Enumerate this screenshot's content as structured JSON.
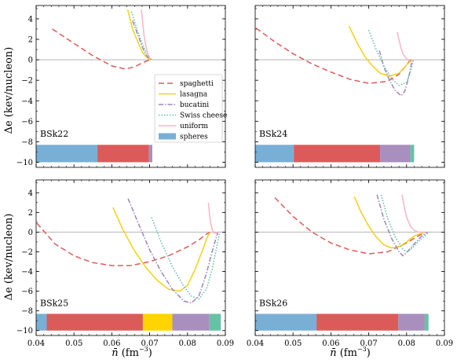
{
  "figure": {
    "ylabel": "Δe (kev/nucleon)",
    "xlabel_main": "n̄",
    "xlabel_unit": " (fm",
    "xlabel_exp": "−3",
    "xlabel_close": ")"
  },
  "legend": [
    {
      "key": "spaghetti",
      "label": "spaghetti",
      "color": "#dd5a5a",
      "dash": "7,4",
      "kind": "line"
    },
    {
      "key": "lasagna",
      "label": "lasagna",
      "color": "#f3d214",
      "dash": "",
      "kind": "line"
    },
    {
      "key": "bucatini",
      "label": "bucatini",
      "color": "#9e86b6",
      "dash": "6,2,1.5,2",
      "kind": "line"
    },
    {
      "key": "swiss",
      "label": "Swiss cheese",
      "color": "#5cbfa8",
      "dash": "1.5,2",
      "kind": "line"
    },
    {
      "key": "uniform",
      "label": "uniform",
      "color": "#f7b6c4",
      "dash": "",
      "kind": "line"
    },
    {
      "key": "spheres",
      "label": "spheres",
      "color": "#7aafd5",
      "dash": "",
      "kind": "patch"
    }
  ],
  "phase_colors": {
    "spheres": "#7aafd5",
    "spaghetti": "#dd5a5a",
    "lasagna": "#ffd400",
    "bucatini": "#a88fbe",
    "swiss": "#66c2a5"
  },
  "chart_data": [
    {
      "type": "line",
      "model": "BSk22",
      "xlim": [
        0.04,
        0.09
      ],
      "ylim": [
        -10.5,
        5.3
      ],
      "xticks": [
        "0.04",
        "0.05",
        "0.06",
        "0.07",
        "0.08",
        "0.09"
      ],
      "yticks": [
        "−10",
        "−8",
        "−6",
        "−4",
        "−2",
        "0",
        "2",
        "4"
      ],
      "show_xticklabels": false,
      "show_yticklabels": true,
      "series": [
        {
          "key": "spaghetti",
          "x": [
            0.0443,
            0.05,
            0.055,
            0.06,
            0.0635,
            0.066,
            0.068,
            0.07,
            0.0705
          ],
          "y": [
            3.0,
            1.6,
            0.4,
            -0.6,
            -0.9,
            -0.7,
            -0.3,
            0.0,
            0.05
          ]
        },
        {
          "key": "lasagna",
          "x": [
            0.0642,
            0.0655,
            0.0668,
            0.068,
            0.069,
            0.0698,
            0.0705
          ],
          "y": [
            4.9,
            3.0,
            1.8,
            0.8,
            0.3,
            0.05,
            0.0
          ]
        },
        {
          "key": "bucatini",
          "x": [
            0.0655,
            0.067,
            0.068,
            0.069,
            0.0698,
            0.0705
          ],
          "y": [
            3.8,
            2.3,
            1.3,
            0.5,
            0.15,
            0.0
          ]
        },
        {
          "key": "swiss",
          "x": [
            0.0652,
            0.0668,
            0.068,
            0.069,
            0.0698,
            0.0706
          ],
          "y": [
            4.7,
            2.8,
            1.6,
            0.8,
            0.25,
            0.0
          ]
        },
        {
          "key": "uniform",
          "x": [
            0.0678,
            0.0685,
            0.069,
            0.0695,
            0.07,
            0.0707
          ],
          "y": [
            4.9,
            2.4,
            1.3,
            0.6,
            0.2,
            0.0
          ]
        }
      ],
      "bands": [
        {
          "phase": "spheres",
          "from": 0.04,
          "to": 0.0562
        },
        {
          "phase": "spaghetti",
          "from": 0.0562,
          "to": 0.0698
        },
        {
          "phase": "bucatini",
          "from": 0.0698,
          "to": 0.0707
        }
      ]
    },
    {
      "type": "line",
      "model": "BSk24",
      "xlim": [
        0.04,
        0.09
      ],
      "ylim": [
        -10.5,
        5.3
      ],
      "xticks": [
        "0.04",
        "0.05",
        "0.06",
        "0.07",
        "0.08",
        "0.09"
      ],
      "yticks": [
        "−10",
        "−8",
        "−6",
        "−4",
        "−2",
        "0",
        "2",
        "4"
      ],
      "show_xticklabels": false,
      "show_yticklabels": false,
      "series": [
        {
          "key": "spaghetti",
          "x": [
            0.0402,
            0.045,
            0.05,
            0.055,
            0.06,
            0.065,
            0.07,
            0.075,
            0.078,
            0.08,
            0.081
          ],
          "y": [
            3.1,
            1.8,
            0.6,
            -0.4,
            -1.2,
            -1.9,
            -2.3,
            -2.1,
            -1.4,
            -0.5,
            0.0
          ]
        },
        {
          "key": "lasagna",
          "x": [
            0.0648,
            0.067,
            0.069,
            0.071,
            0.073,
            0.0755,
            0.078,
            0.08,
            0.0815
          ],
          "y": [
            3.3,
            1.6,
            0.3,
            -0.6,
            -1.3,
            -1.6,
            -1.3,
            -0.5,
            0.0
          ]
        },
        {
          "key": "bucatini",
          "x": [
            0.0728,
            0.074,
            0.0755,
            0.077,
            0.0785,
            0.0795,
            0.0805,
            0.0815
          ],
          "y": [
            0.9,
            -0.7,
            -2.0,
            -3.0,
            -3.5,
            -3.1,
            -1.8,
            0.0
          ]
        },
        {
          "key": "swiss",
          "x": [
            0.07,
            0.072,
            0.074,
            0.076,
            0.078,
            0.08,
            0.081,
            0.0818
          ],
          "y": [
            2.9,
            1.0,
            -0.6,
            -1.8,
            -2.5,
            -2.2,
            -1.2,
            0.0
          ]
        },
        {
          "key": "uniform",
          "x": [
            0.0775,
            0.0785,
            0.079,
            0.08,
            0.081,
            0.0818
          ],
          "y": [
            2.7,
            1.2,
            0.6,
            0.1,
            -0.2,
            0.0
          ]
        }
      ],
      "bands": [
        {
          "phase": "spheres",
          "from": 0.04,
          "to": 0.0502
        },
        {
          "phase": "spaghetti",
          "from": 0.0502,
          "to": 0.073
        },
        {
          "phase": "bucatini",
          "from": 0.073,
          "to": 0.081
        },
        {
          "phase": "swiss",
          "from": 0.081,
          "to": 0.082
        }
      ]
    },
    {
      "type": "line",
      "model": "BSk25",
      "xlim": [
        0.04,
        0.09
      ],
      "ylim": [
        -10.5,
        5.3
      ],
      "xticks": [
        "0.04",
        "0.05",
        "0.06",
        "0.07",
        "0.08",
        "0.09"
      ],
      "yticks": [
        "−10",
        "−8",
        "−6",
        "−4",
        "−2",
        "0",
        "2",
        "4"
      ],
      "show_xticklabels": true,
      "show_yticklabels": true,
      "series": [
        {
          "key": "spaghetti",
          "x": [
            0.0402,
            0.045,
            0.05,
            0.055,
            0.06,
            0.065,
            0.07,
            0.075,
            0.08,
            0.083,
            0.085,
            0.086
          ],
          "y": [
            0.9,
            -1.2,
            -2.4,
            -3.1,
            -3.4,
            -3.4,
            -3.0,
            -2.4,
            -1.5,
            -0.8,
            -0.2,
            0.0
          ]
        },
        {
          "key": "lasagna",
          "x": [
            0.0603,
            0.063,
            0.066,
            0.069,
            0.072,
            0.075,
            0.078,
            0.08,
            0.082,
            0.084,
            0.085,
            0.086
          ],
          "y": [
            2.5,
            0.2,
            -1.9,
            -3.6,
            -4.9,
            -5.8,
            -6.0,
            -5.4,
            -3.8,
            -1.8,
            -0.7,
            0.0
          ]
        },
        {
          "key": "bucatini",
          "x": [
            0.0643,
            0.067,
            0.07,
            0.073,
            0.076,
            0.079,
            0.081,
            0.083,
            0.085,
            0.0865,
            0.088
          ],
          "y": [
            3.4,
            0.9,
            -1.8,
            -4.0,
            -5.8,
            -7.0,
            -7.2,
            -6.5,
            -4.2,
            -2.0,
            0.0
          ]
        },
        {
          "key": "swiss",
          "x": [
            0.0705,
            0.073,
            0.076,
            0.079,
            0.081,
            0.083,
            0.085,
            0.0865,
            0.088,
            0.0885
          ],
          "y": [
            1.5,
            -1.0,
            -3.5,
            -5.5,
            -6.5,
            -6.8,
            -5.8,
            -3.8,
            -1.0,
            0.0
          ]
        },
        {
          "key": "uniform",
          "x": [
            0.0855,
            0.086,
            0.0865,
            0.087,
            0.0875,
            0.088
          ],
          "y": [
            3.0,
            1.2,
            0.3,
            -0.1,
            -0.1,
            0.0
          ]
        }
      ],
      "bands": [
        {
          "phase": "spheres",
          "from": 0.04,
          "to": 0.0428
        },
        {
          "phase": "spaghetti",
          "from": 0.0428,
          "to": 0.0682
        },
        {
          "phase": "lasagna",
          "from": 0.0682,
          "to": 0.076
        },
        {
          "phase": "bucatini",
          "from": 0.076,
          "to": 0.0858
        },
        {
          "phase": "swiss",
          "from": 0.0858,
          "to": 0.0888
        }
      ]
    },
    {
      "type": "line",
      "model": "BSk26",
      "xlim": [
        0.04,
        0.09
      ],
      "ylim": [
        -10.5,
        5.3
      ],
      "xticks": [
        "0.04",
        "0.05",
        "0.06",
        "0.07",
        "0.08",
        "0.09"
      ],
      "yticks": [
        "−10",
        "−8",
        "−6",
        "−4",
        "−2",
        "0",
        "2",
        "4"
      ],
      "show_xticklabels": true,
      "show_yticklabels": false,
      "series": [
        {
          "key": "spaghetti",
          "x": [
            0.0452,
            0.05,
            0.055,
            0.06,
            0.065,
            0.07,
            0.075,
            0.08,
            0.083,
            0.085
          ],
          "y": [
            3.5,
            1.6,
            0.0,
            -1.1,
            -1.8,
            -2.2,
            -2.0,
            -1.1,
            -0.4,
            0.0
          ]
        },
        {
          "key": "lasagna",
          "x": [
            0.0662,
            0.068,
            0.07,
            0.072,
            0.074,
            0.076,
            0.078,
            0.08,
            0.082,
            0.084,
            0.085
          ],
          "y": [
            3.6,
            2.0,
            0.6,
            -0.5,
            -1.3,
            -1.6,
            -1.5,
            -1.0,
            -0.4,
            -0.1,
            0.0
          ]
        },
        {
          "key": "bucatini",
          "x": [
            0.0722,
            0.074,
            0.076,
            0.078,
            0.079,
            0.08,
            0.082,
            0.084,
            0.0855
          ],
          "y": [
            3.8,
            1.3,
            -0.6,
            -2.0,
            -2.4,
            -2.1,
            -1.2,
            -0.4,
            0.0
          ]
        },
        {
          "key": "swiss",
          "x": [
            0.0733,
            0.075,
            0.077,
            0.079,
            0.08,
            0.081,
            0.083,
            0.085,
            0.086
          ],
          "y": [
            3.8,
            1.4,
            -0.5,
            -1.7,
            -2.0,
            -1.8,
            -1.0,
            -0.3,
            0.0
          ]
        },
        {
          "key": "uniform",
          "x": [
            0.0788,
            0.0795,
            0.08,
            0.081,
            0.082,
            0.083,
            0.085
          ],
          "y": [
            3.8,
            2.3,
            1.5,
            0.6,
            0.2,
            0.0,
            0.0
          ]
        }
      ],
      "bands": [
        {
          "phase": "spheres",
          "from": 0.04,
          "to": 0.0562
        },
        {
          "phase": "spaghetti",
          "from": 0.0562,
          "to": 0.0778
        },
        {
          "phase": "bucatini",
          "from": 0.0778,
          "to": 0.0848
        },
        {
          "phase": "swiss",
          "from": 0.0848,
          "to": 0.0858
        }
      ]
    }
  ]
}
